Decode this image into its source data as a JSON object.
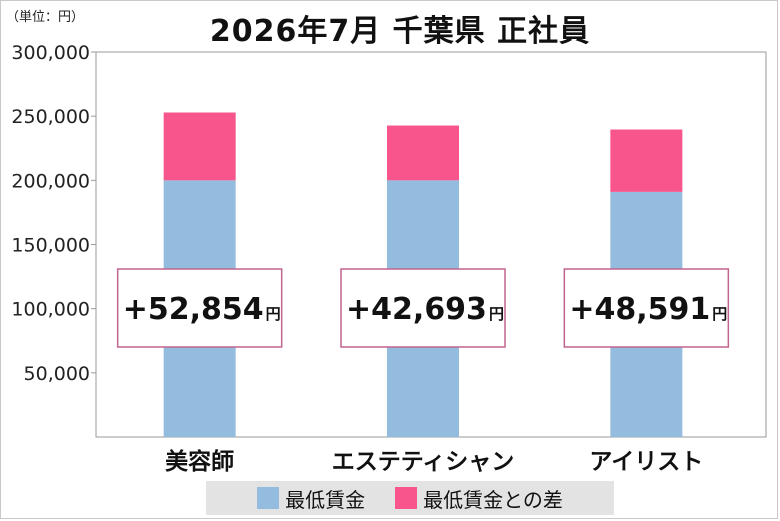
{
  "colors": {
    "minimum_wage": "#94bcdf",
    "difference": "#f7558c",
    "callout_border": "#c2638e"
  },
  "chart_data": {
    "type": "bar",
    "stacked": true,
    "title": "2026年7月 千葉県 正社員",
    "unit_label": "（単位：円）",
    "categories": [
      "美容師",
      "エステティシャン",
      "アイリスト"
    ],
    "series": [
      {
        "name": "最低賃金",
        "values": [
          200000,
          200000,
          191000
        ]
      },
      {
        "name": "最低賃金との差",
        "values": [
          52854,
          42693,
          48591
        ]
      }
    ],
    "callouts": [
      {
        "number": "+52,854",
        "unit": "円"
      },
      {
        "number": "+42,693",
        "unit": "円"
      },
      {
        "number": "+48,591",
        "unit": "円"
      }
    ],
    "y_ticks": [
      "50,000",
      "100,000",
      "150,000",
      "200,000",
      "250,000",
      "300,000"
    ],
    "ylim": [
      0,
      300000
    ],
    "grid": false,
    "legend": "bottom"
  }
}
